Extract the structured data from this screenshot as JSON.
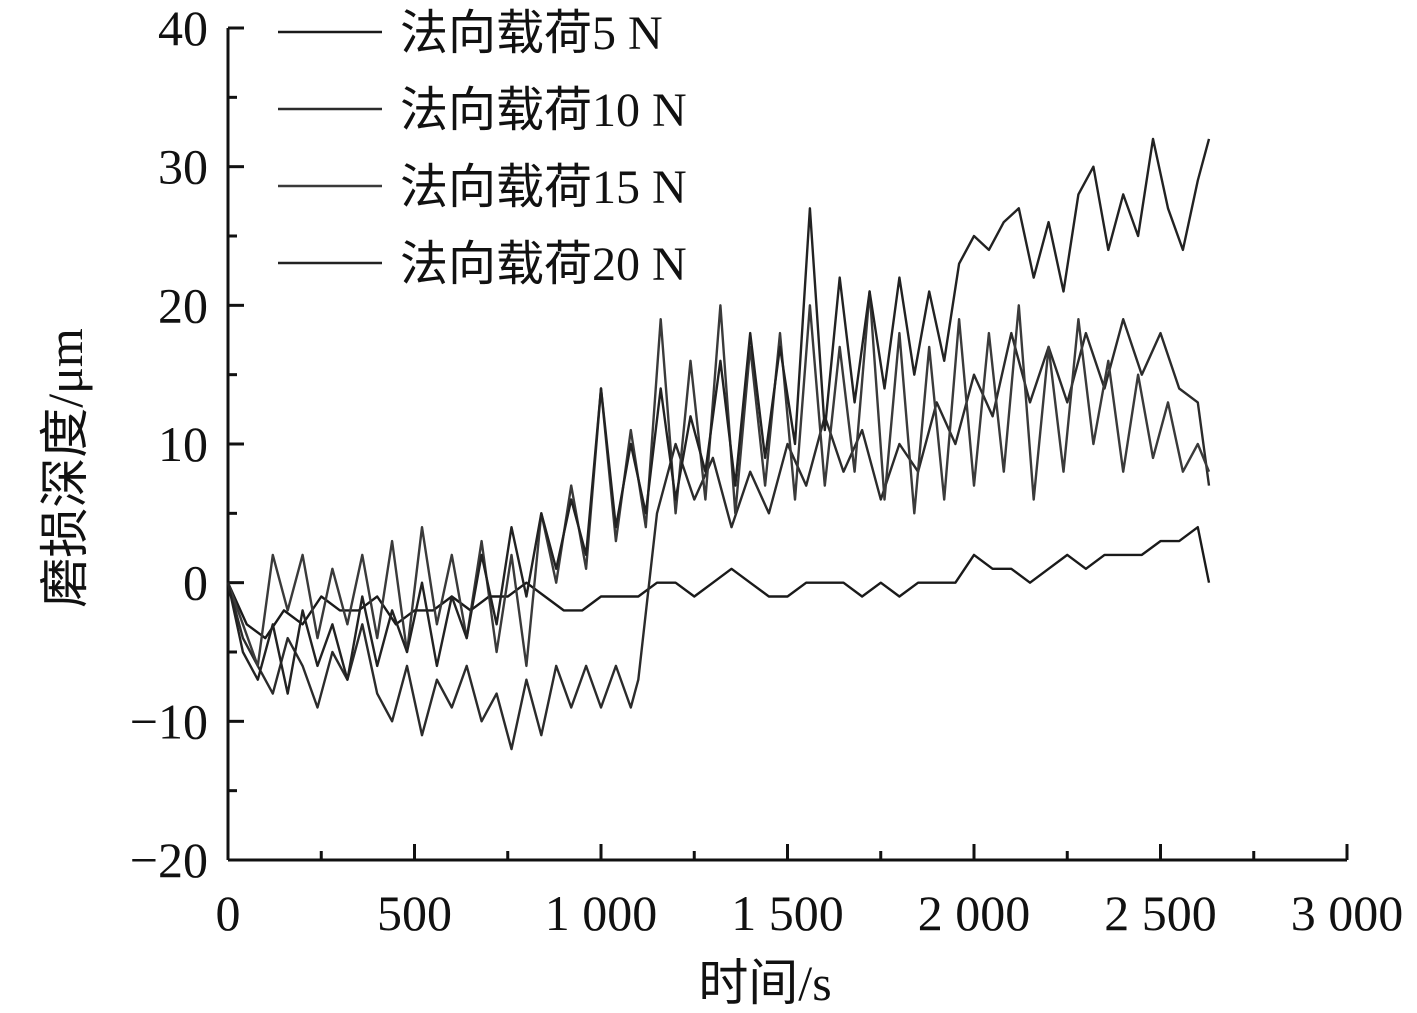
{
  "chart_data": {
    "type": "line",
    "xlabel": "时间/s",
    "ylabel": "磨损深度/μm",
    "xlim": [
      0,
      3000
    ],
    "ylim": [
      -20,
      40
    ],
    "x_ticks": [
      0,
      500,
      1000,
      1500,
      2000,
      2500,
      3000
    ],
    "x_tick_labels": [
      "0",
      "500",
      "1 000",
      "1 500",
      "2 000",
      "2 500",
      "3 000"
    ],
    "y_ticks": [
      -20,
      -10,
      0,
      10,
      20,
      30,
      40
    ],
    "y_tick_labels": [
      "−20",
      "−10",
      "0",
      "10",
      "20",
      "30",
      "40"
    ],
    "grid": false,
    "legend_position": "top-left",
    "series": [
      {
        "name": "法向载荷5 N",
        "x": [
          0,
          50,
          100,
          150,
          200,
          250,
          300,
          350,
          400,
          450,
          500,
          550,
          600,
          650,
          700,
          750,
          800,
          850,
          900,
          950,
          1000,
          1050,
          1100,
          1150,
          1200,
          1250,
          1300,
          1350,
          1400,
          1450,
          1500,
          1550,
          1600,
          1650,
          1700,
          1750,
          1800,
          1850,
          1900,
          1950,
          2000,
          2050,
          2100,
          2150,
          2200,
          2250,
          2300,
          2350,
          2400,
          2450,
          2500,
          2550,
          2600,
          2630
        ],
        "y": [
          0,
          -3,
          -4,
          -2,
          -3,
          -1,
          -2,
          -2,
          -1,
          -3,
          -2,
          -2,
          -1,
          -2,
          -1,
          -1,
          0,
          -1,
          -2,
          -2,
          -1,
          -1,
          -1,
          0,
          0,
          -1,
          0,
          1,
          0,
          -1,
          -1,
          0,
          0,
          0,
          -1,
          0,
          -1,
          0,
          0,
          0,
          2,
          1,
          1,
          0,
          1,
          2,
          1,
          2,
          2,
          2,
          3,
          3,
          4,
          0
        ]
      },
      {
        "name": "法向载荷10 N",
        "x": [
          0,
          40,
          80,
          120,
          160,
          200,
          240,
          280,
          320,
          360,
          400,
          440,
          480,
          520,
          560,
          600,
          640,
          680,
          720,
          760,
          800,
          840,
          880,
          920,
          960,
          1000,
          1040,
          1080,
          1100,
          1150,
          1200,
          1250,
          1300,
          1350,
          1400,
          1450,
          1500,
          1550,
          1600,
          1650,
          1700,
          1750,
          1800,
          1850,
          1900,
          1950,
          2000,
          2050,
          2100,
          2150,
          2200,
          2250,
          2300,
          2350,
          2400,
          2450,
          2500,
          2550,
          2600,
          2630
        ],
        "y": [
          0,
          -4,
          -6,
          -8,
          -4,
          -6,
          -9,
          -5,
          -7,
          -3,
          -8,
          -10,
          -6,
          -11,
          -7,
          -9,
          -6,
          -10,
          -8,
          -12,
          -7,
          -11,
          -6,
          -9,
          -6,
          -9,
          -6,
          -9,
          -7,
          5,
          10,
          6,
          9,
          4,
          8,
          5,
          10,
          7,
          12,
          8,
          11,
          6,
          10,
          8,
          13,
          10,
          15,
          12,
          18,
          13,
          17,
          13,
          18,
          14,
          19,
          15,
          18,
          14,
          13,
          7
        ]
      },
      {
        "name": "法向载荷15 N",
        "x": [
          0,
          40,
          80,
          120,
          160,
          200,
          240,
          280,
          320,
          360,
          400,
          440,
          480,
          520,
          560,
          600,
          640,
          680,
          720,
          760,
          800,
          840,
          880,
          920,
          960,
          1000,
          1040,
          1080,
          1120,
          1160,
          1200,
          1240,
          1280,
          1320,
          1360,
          1400,
          1440,
          1480,
          1520,
          1560,
          1600,
          1640,
          1680,
          1720,
          1760,
          1800,
          1840,
          1880,
          1920,
          1960,
          2000,
          2040,
          2080,
          2120,
          2160,
          2200,
          2240,
          2280,
          2320,
          2360,
          2400,
          2440,
          2480,
          2520,
          2560,
          2600,
          2630
        ],
        "y": [
          0,
          -3,
          -6,
          2,
          -2,
          2,
          -4,
          1,
          -3,
          2,
          -4,
          3,
          -5,
          4,
          -3,
          2,
          -4,
          3,
          -5,
          2,
          -6,
          5,
          0,
          7,
          1,
          14,
          3,
          11,
          4,
          19,
          5,
          16,
          6,
          20,
          5,
          17,
          7,
          18,
          6,
          20,
          7,
          17,
          8,
          21,
          6,
          18,
          5,
          17,
          6,
          19,
          7,
          18,
          8,
          20,
          6,
          17,
          8,
          19,
          10,
          16,
          8,
          15,
          9,
          13,
          8,
          10,
          8
        ]
      },
      {
        "name": "法向载荷20 N",
        "x": [
          0,
          40,
          80,
          120,
          160,
          200,
          240,
          280,
          320,
          360,
          400,
          440,
          480,
          520,
          560,
          600,
          640,
          680,
          720,
          760,
          800,
          840,
          880,
          920,
          960,
          1000,
          1040,
          1080,
          1120,
          1160,
          1200,
          1240,
          1280,
          1320,
          1360,
          1400,
          1440,
          1480,
          1520,
          1560,
          1600,
          1640,
          1680,
          1720,
          1760,
          1800,
          1840,
          1880,
          1920,
          1960,
          2000,
          2040,
          2080,
          2120,
          2160,
          2200,
          2240,
          2280,
          2320,
          2360,
          2400,
          2440,
          2480,
          2520,
          2560,
          2600,
          2630
        ],
        "y": [
          0,
          -5,
          -7,
          -3,
          -8,
          -2,
          -6,
          -3,
          -7,
          -1,
          -6,
          -2,
          -5,
          0,
          -6,
          -1,
          -4,
          2,
          -3,
          4,
          -1,
          5,
          1,
          6,
          2,
          14,
          4,
          10,
          5,
          14,
          6,
          12,
          8,
          16,
          7,
          18,
          9,
          17,
          10,
          27,
          11,
          22,
          13,
          21,
          14,
          22,
          15,
          21,
          16,
          23,
          25,
          24,
          26,
          27,
          22,
          26,
          21,
          28,
          30,
          24,
          28,
          25,
          32,
          27,
          24,
          29,
          32
        ]
      }
    ]
  }
}
